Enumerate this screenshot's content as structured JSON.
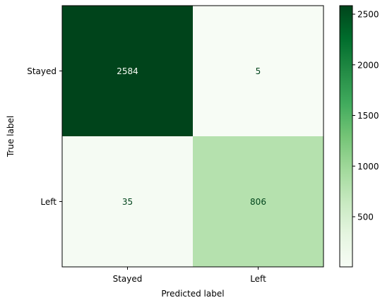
{
  "chart_data": {
    "type": "heatmap",
    "title": "",
    "xlabel": "Predicted label",
    "ylabel": "True label",
    "x_categories": [
      "Stayed",
      "Left"
    ],
    "y_categories": [
      "Stayed",
      "Left"
    ],
    "values": [
      [
        2584,
        5
      ],
      [
        35,
        806
      ]
    ],
    "colormap": "Greens",
    "color_low": "#f7fcf5",
    "color_high": "#00441b",
    "colorbar_ticks": [
      500,
      1000,
      1500,
      2000,
      2500
    ],
    "value_text_color_light": "#f7fcf5",
    "value_text_color_dark": "#00441b"
  }
}
